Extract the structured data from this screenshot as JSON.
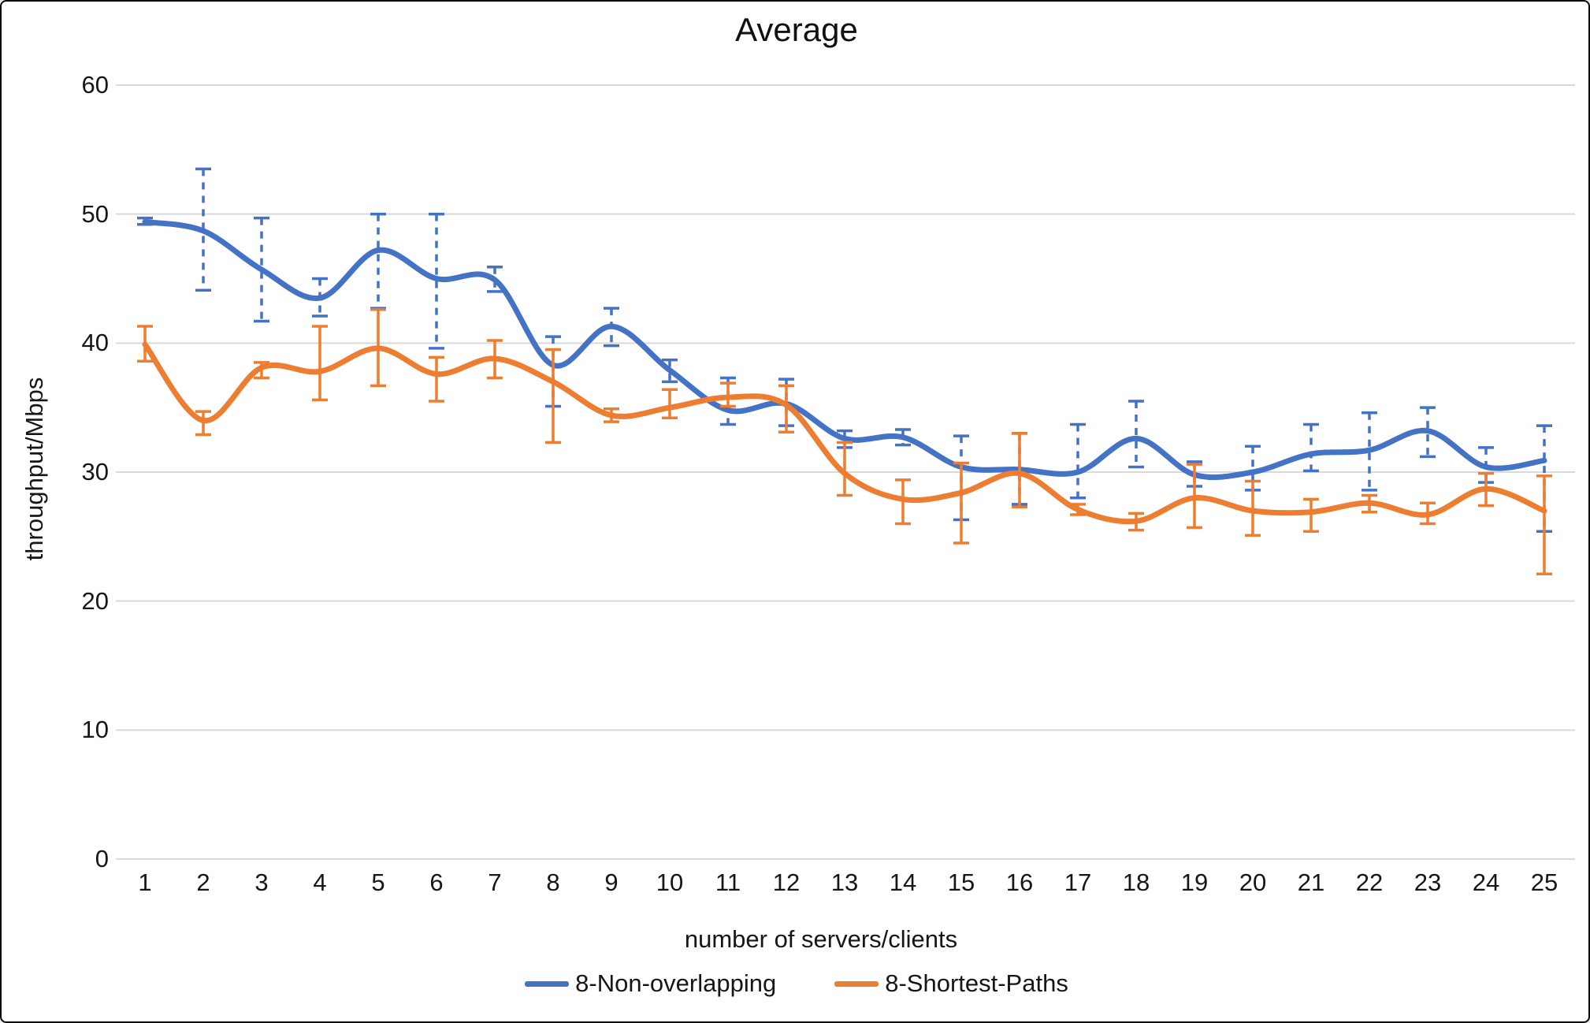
{
  "window": {
    "background": "#ffffff",
    "border_color": "#0a0a0a"
  },
  "chart_data": {
    "type": "line",
    "title": "Average",
    "xlabel": "number of servers/clients",
    "ylabel": "throughput/Mbps",
    "x": [
      1,
      2,
      3,
      4,
      5,
      6,
      7,
      8,
      9,
      10,
      11,
      12,
      13,
      14,
      15,
      16,
      17,
      18,
      19,
      20,
      21,
      22,
      23,
      24,
      25
    ],
    "ylim": [
      0,
      60
    ],
    "yticks": [
      0,
      10,
      20,
      30,
      40,
      50,
      60
    ],
    "grid": "horizontal",
    "gridline_color": "#d9d9d9",
    "text_color": "#161616",
    "legend_position": "bottom",
    "series": [
      {
        "name": "8-Non-overlapping",
        "color": "#4472C4",
        "line_style": "solid-smooth",
        "error_bar_style": "dashed",
        "values": [
          49.4,
          48.7,
          45.7,
          43.5,
          47.2,
          45.0,
          44.9,
          38.3,
          41.3,
          37.9,
          34.8,
          35.3,
          32.6,
          32.7,
          30.4,
          30.2,
          30.0,
          32.6,
          29.8,
          30.0,
          31.4,
          31.7,
          33.2,
          30.4,
          30.9
        ],
        "err_lo": [
          49.2,
          44.1,
          41.7,
          42.1,
          42.7,
          39.6,
          44.0,
          35.1,
          39.8,
          37.0,
          33.7,
          33.6,
          31.9,
          32.1,
          26.3,
          27.5,
          28.0,
          30.4,
          28.9,
          28.6,
          30.1,
          28.6,
          31.2,
          29.2,
          25.4
        ],
        "err_hi": [
          49.7,
          53.5,
          49.7,
          45.0,
          50.0,
          50.0,
          45.9,
          40.5,
          42.7,
          38.7,
          37.3,
          37.2,
          33.2,
          33.3,
          32.8,
          33.0,
          33.7,
          35.5,
          30.8,
          32.0,
          33.7,
          34.6,
          35.0,
          31.9,
          33.6
        ]
      },
      {
        "name": "8-Shortest-Paths",
        "color": "#ED7D31",
        "line_style": "solid-smooth",
        "error_bar_style": "solid",
        "values": [
          39.9,
          34.0,
          38.1,
          37.8,
          39.6,
          37.6,
          38.8,
          37.0,
          34.4,
          35.0,
          35.8,
          35.2,
          29.9,
          27.9,
          28.4,
          29.9,
          27.1,
          26.2,
          28.0,
          27.0,
          26.9,
          27.6,
          26.7,
          28.7,
          27.0
        ],
        "err_lo": [
          38.6,
          32.9,
          37.3,
          35.6,
          36.7,
          35.5,
          37.3,
          32.3,
          33.9,
          34.2,
          35.1,
          33.1,
          28.2,
          26.0,
          24.5,
          27.3,
          26.7,
          25.5,
          25.7,
          25.1,
          25.4,
          26.9,
          26.0,
          27.4,
          22.1
        ],
        "err_hi": [
          41.3,
          34.7,
          38.5,
          41.3,
          42.6,
          38.9,
          40.2,
          39.5,
          34.9,
          36.4,
          36.9,
          36.7,
          32.3,
          29.4,
          30.7,
          33.0,
          27.5,
          26.8,
          30.6,
          29.3,
          27.9,
          28.2,
          27.6,
          29.9,
          29.7
        ]
      }
    ]
  }
}
